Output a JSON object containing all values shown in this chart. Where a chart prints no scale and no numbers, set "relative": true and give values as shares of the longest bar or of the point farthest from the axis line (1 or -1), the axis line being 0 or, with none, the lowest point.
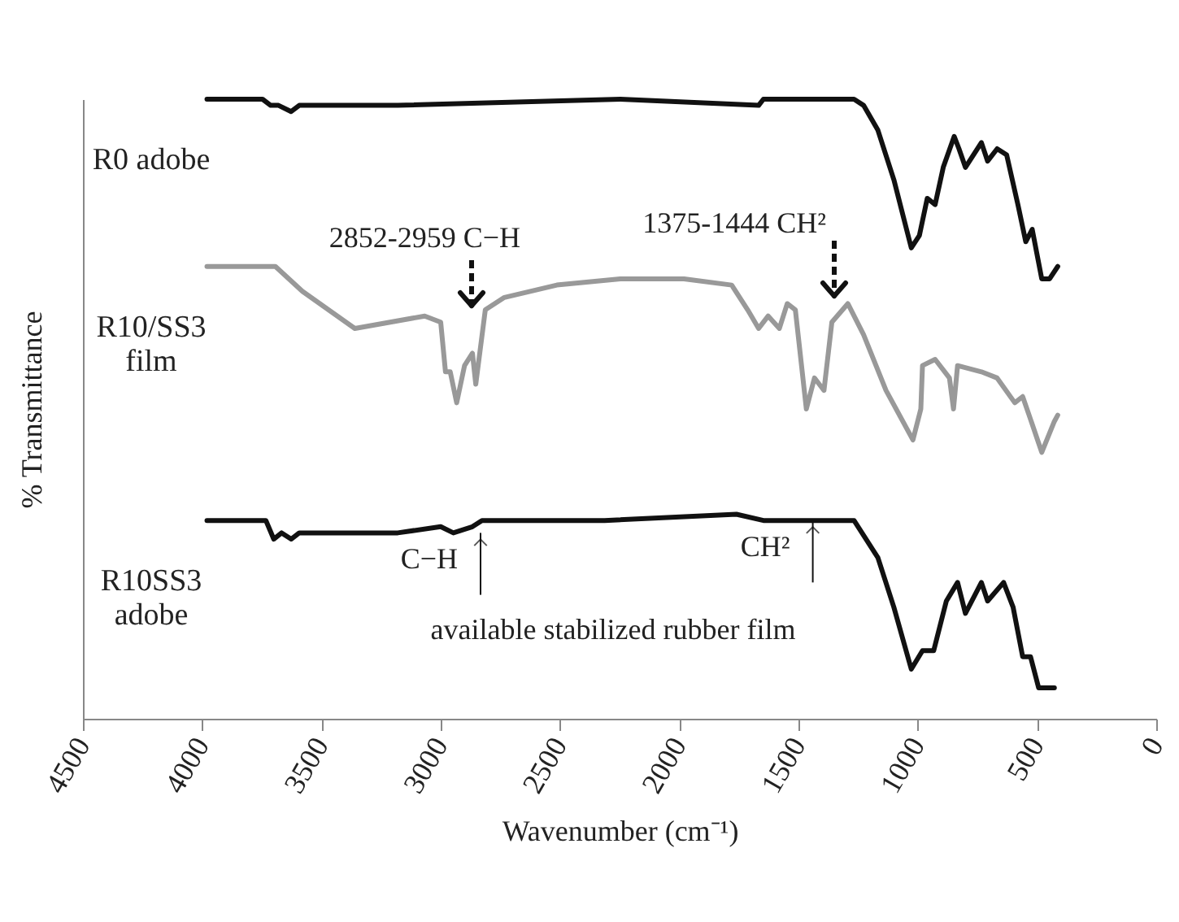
{
  "chart_data": {
    "type": "line",
    "relative": true,
    "xlabel": "Wavenumber (cm⁻¹)",
    "ylabel": "% Transmittance",
    "xlim": [
      4500,
      0
    ],
    "xticks": [
      4500,
      4000,
      3500,
      3000,
      2500,
      2000,
      1500,
      1000,
      500,
      0
    ],
    "grid": false,
    "legend": false,
    "marker": "none",
    "line_style": "solid",
    "annotations": [
      "2852-2959 C−H",
      "1375-1444 CH²",
      {
        "text": "C−H",
        "x": 2833,
        "y": 0.3
      },
      {
        "text": "CH²",
        "x": 1440,
        "y": 0.32
      },
      "available stabilized rubber film"
    ],
    "series": [
      {
        "name": "R0 adobe",
        "color": "#111111",
        "x": [
          3980,
          3747,
          3713,
          3680,
          3627,
          3593,
          3180,
          2247,
          1667,
          1647,
          1267,
          1227,
          1167,
          1100,
          1027,
          993,
          960,
          927,
          893,
          847,
          827,
          800,
          733,
          707,
          667,
          627,
          580,
          547,
          520,
          480,
          447,
          413
        ],
        "values": [
          1.0,
          1.0,
          0.99,
          0.99,
          0.98,
          0.99,
          0.99,
          1.0,
          0.99,
          1.0,
          1.0,
          0.99,
          0.95,
          0.87,
          0.76,
          0.78,
          0.84,
          0.83,
          0.89,
          0.94,
          0.92,
          0.89,
          0.93,
          0.9,
          0.92,
          0.91,
          0.83,
          0.77,
          0.79,
          0.71,
          0.71,
          0.73
        ]
      },
      {
        "name": "R10/SS3\nfilm",
        "color": "#999999",
        "x": [
          3980,
          3693,
          3580,
          3360,
          3067,
          3000,
          2980,
          2960,
          2933,
          2900,
          2867,
          2853,
          2813,
          2733,
          2513,
          2247,
          1980,
          1780,
          1713,
          1667,
          1627,
          1580,
          1547,
          1513,
          1467,
          1433,
          1413,
          1393,
          1360,
          1293,
          1227,
          1133,
          1020,
          987,
          980,
          927,
          867,
          850,
          833,
          733,
          667,
          593,
          560,
          533,
          480,
          427,
          413
        ],
        "values": [
          0.73,
          0.73,
          0.69,
          0.63,
          0.65,
          0.64,
          0.56,
          0.56,
          0.51,
          0.57,
          0.59,
          0.54,
          0.66,
          0.68,
          0.7,
          0.71,
          0.71,
          0.7,
          0.66,
          0.63,
          0.65,
          0.63,
          0.67,
          0.66,
          0.5,
          0.55,
          0.54,
          0.53,
          0.64,
          0.67,
          0.62,
          0.53,
          0.45,
          0.5,
          0.57,
          0.58,
          0.55,
          0.5,
          0.57,
          0.56,
          0.55,
          0.51,
          0.52,
          0.49,
          0.43,
          0.48,
          0.49
        ]
      },
      {
        "name": "R10SS3\nadobe",
        "color": "#111111",
        "x": [
          3980,
          3733,
          3700,
          3667,
          3627,
          3593,
          3180,
          3000,
          2947,
          2867,
          2827,
          2313,
          1760,
          1647,
          1533,
          1447,
          1333,
          1267,
          1167,
          1100,
          1027,
          980,
          933,
          880,
          833,
          800,
          733,
          707,
          640,
          600,
          560,
          527,
          493,
          427
        ],
        "values": [
          0.32,
          0.32,
          0.29,
          0.3,
          0.29,
          0.3,
          0.3,
          0.31,
          0.3,
          0.31,
          0.32,
          0.32,
          0.33,
          0.32,
          0.32,
          0.32,
          0.32,
          0.32,
          0.26,
          0.18,
          0.08,
          0.11,
          0.11,
          0.19,
          0.22,
          0.17,
          0.22,
          0.19,
          0.22,
          0.18,
          0.1,
          0.1,
          0.05,
          0.05
        ]
      }
    ]
  }
}
